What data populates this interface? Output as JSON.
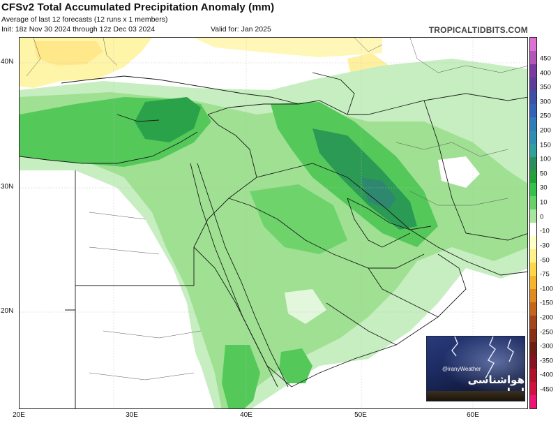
{
  "header": {
    "title": "CFSv2 Total Accumulated Precipitation Anomaly (mm)",
    "subtitle_1": "Average of last 12 forecasts (12 runs x 1 members)",
    "subtitle_2": "Init: 18z Nov 30 2024 through 12z Dec 03 2024",
    "valid": "Valid for: Jan 2025",
    "brand": "TROPICALTIDBITS.COM"
  },
  "map": {
    "lat_labels": [
      "40N",
      "30N",
      "20N"
    ],
    "lon_labels": [
      "20E",
      "30E",
      "40E",
      "50E",
      "60E"
    ],
    "land_color": "#ffffff",
    "border_color": "#1a1a1a"
  },
  "colorbar": {
    "ticks": [
      "450",
      "400",
      "350",
      "300",
      "250",
      "200",
      "150",
      "100",
      "50",
      "30",
      "10",
      "0",
      "-10",
      "-30",
      "-50",
      "-75",
      "-100",
      "-150",
      "-200",
      "-250",
      "-300",
      "-350",
      "-400",
      "-450"
    ],
    "colors": [
      "#e070d8",
      "#b057b8",
      "#7c3aa0",
      "#5a3e9a",
      "#3b50a8",
      "#3360b8",
      "#2e7db8",
      "#2e90b0",
      "#2ea0a0",
      "#2a8f5a",
      "#21a33a",
      "#33c24a",
      "#66d26a",
      "#a8e6a0",
      "#ffffff",
      "#ffffc8",
      "#fff28a",
      "#ffd84a",
      "#f5b62e",
      "#e08a22",
      "#c8651c",
      "#a5461a",
      "#8a2f16",
      "#6e1c14",
      "#8a1024",
      "#b0102c",
      "#d0103e",
      "#f01272"
    ]
  },
  "logo": {
    "handle": "@iranyWeather",
    "title_fa": "هواشناسی ایران"
  }
}
